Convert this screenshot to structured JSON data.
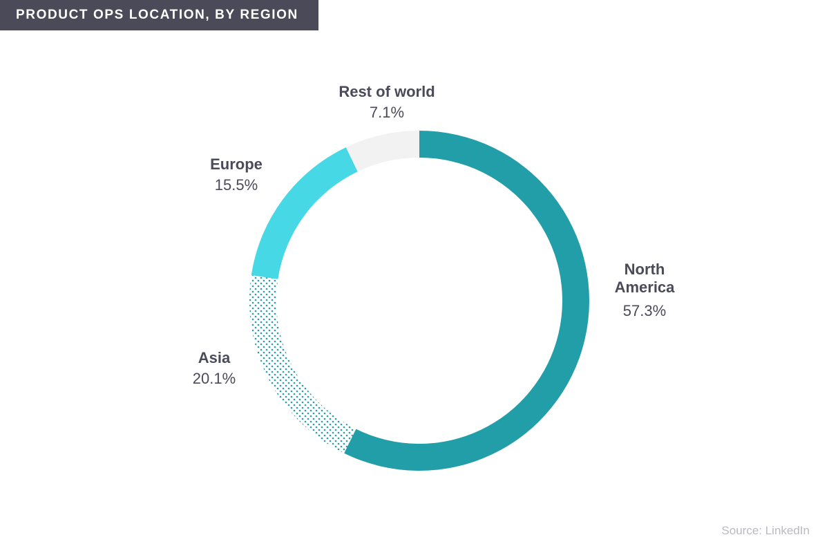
{
  "title": "PRODUCT OPS LOCATION, BY REGION",
  "source": "Source: LinkedIn",
  "colors": {
    "title_bg": "#4a4a59",
    "north_america": "#229ea9",
    "asia": "#229ea9",
    "europe": "#47d8e5",
    "rest_of_world": "#f2f2f2",
    "text": "#4a4a59",
    "source_text": "#b9b9c3"
  },
  "labels": {
    "north_america": {
      "name_line1": "North",
      "name_line2": "America",
      "pct": "57.3%"
    },
    "asia": {
      "name": "Asia",
      "pct": "20.1%"
    },
    "europe": {
      "name": "Europe",
      "pct": "15.5%"
    },
    "rest_of_world": {
      "name": "Rest of world",
      "pct": "7.1%"
    }
  },
  "chart_data": {
    "type": "pie",
    "variant": "donut",
    "title": "PRODUCT OPS LOCATION, BY REGION",
    "categories": [
      "North America",
      "Asia",
      "Europe",
      "Rest of world"
    ],
    "values": [
      57.3,
      20.1,
      15.5,
      7.1
    ],
    "unit": "%",
    "start_angle": "12 o'clock, clockwise",
    "segment_styles": [
      "solid teal",
      "dotted teal pattern",
      "solid light cyan",
      "solid light gray"
    ],
    "legend": "direct labels",
    "source": "Source: LinkedIn"
  }
}
